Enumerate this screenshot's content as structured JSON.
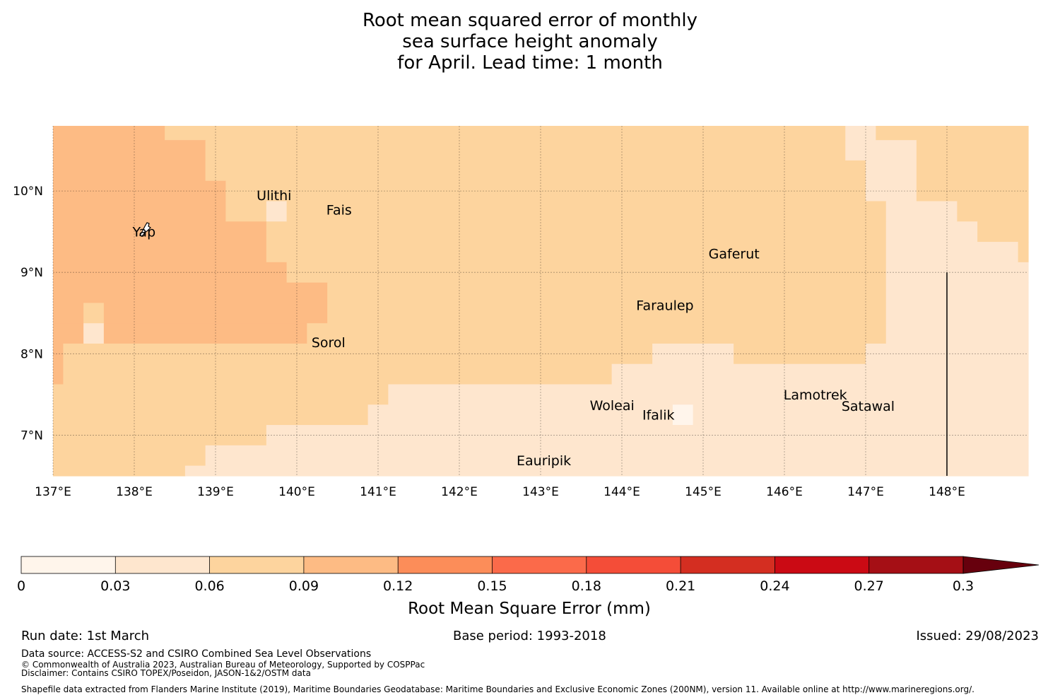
{
  "title": {
    "line1": "Root mean squared error of monthly",
    "line2": "sea surface height anomaly",
    "line3": "for April. Lead time: 1 month"
  },
  "map": {
    "lon_range": [
      137.0,
      149.0
    ],
    "lat_range": [
      6.5,
      10.8
    ],
    "lon_ticks": [
      {
        "value": 137,
        "label": "137°E"
      },
      {
        "value": 138,
        "label": "138°E"
      },
      {
        "value": 139,
        "label": "139°E"
      },
      {
        "value": 140,
        "label": "140°E"
      },
      {
        "value": 141,
        "label": "141°E"
      },
      {
        "value": 142,
        "label": "142°E"
      },
      {
        "value": 143,
        "label": "143°E"
      },
      {
        "value": 144,
        "label": "144°E"
      },
      {
        "value": 145,
        "label": "145°E"
      },
      {
        "value": 146,
        "label": "146°E"
      },
      {
        "value": 147,
        "label": "147°E"
      },
      {
        "value": 148,
        "label": "148°E"
      }
    ],
    "lat_ticks": [
      {
        "value": 10,
        "label": "10°N"
      },
      {
        "value": 9,
        "label": "9°N"
      },
      {
        "value": 8,
        "label": "8°N"
      },
      {
        "value": 7,
        "label": "7°N"
      }
    ],
    "places": [
      {
        "name": "Yap",
        "lon": 138.12,
        "lat": 9.5
      },
      {
        "name": "Ulithi",
        "lon": 139.72,
        "lat": 9.95
      },
      {
        "name": "Fais",
        "lon": 140.52,
        "lat": 9.77
      },
      {
        "name": "Gaferut",
        "lon": 145.38,
        "lat": 9.23
      },
      {
        "name": "Faraulep",
        "lon": 144.53,
        "lat": 8.6
      },
      {
        "name": "Sorol",
        "lon": 140.39,
        "lat": 8.14
      },
      {
        "name": "Woleai",
        "lon": 143.88,
        "lat": 7.37
      },
      {
        "name": "Ifalik",
        "lon": 144.45,
        "lat": 7.25
      },
      {
        "name": "Lamotrek",
        "lon": 146.38,
        "lat": 7.5
      },
      {
        "name": "Satawal",
        "lon": 147.03,
        "lat": 7.36
      },
      {
        "name": "Eauripik",
        "lon": 143.04,
        "lat": 6.69
      }
    ],
    "boundary_line": {
      "lon": 148.0,
      "lat_from": 6.5,
      "lat_to": 9.0
    },
    "field": {
      "cell_size_deg": 0.25,
      "lat_start": 10.75,
      "lon_start": 137.0,
      "note": "rows run north to south starting at lat_start; each row lists [lon_from, lon_to, class] segments; class = colorbar bin index",
      "rows": [
        [
          [
            137.0,
            138.375,
            3
          ],
          [
            138.375,
            141.25,
            2
          ],
          [
            141.25,
            146.75,
            2
          ],
          [
            146.75,
            147.125,
            1
          ],
          [
            147.125,
            147.75,
            2
          ],
          [
            147.75,
            149.0,
            2
          ]
        ],
        [
          [
            137.0,
            138.875,
            3
          ],
          [
            138.875,
            146.75,
            2
          ],
          [
            146.75,
            147.625,
            1
          ],
          [
            147.625,
            149.0,
            2
          ]
        ],
        [
          [
            137.0,
            138.875,
            3
          ],
          [
            138.875,
            147.0,
            2
          ],
          [
            147.0,
            147.625,
            1
          ],
          [
            147.625,
            149.0,
            2
          ]
        ],
        [
          [
            137.0,
            139.125,
            3
          ],
          [
            139.125,
            147.0,
            2
          ],
          [
            147.0,
            147.625,
            1
          ],
          [
            147.625,
            149.0,
            2
          ]
        ],
        [
          [
            137.0,
            139.125,
            3
          ],
          [
            139.125,
            139.625,
            2
          ],
          [
            139.625,
            139.875,
            1
          ],
          [
            139.875,
            147.25,
            2
          ],
          [
            147.25,
            148.125,
            1
          ],
          [
            148.125,
            149.0,
            2
          ]
        ],
        [
          [
            137.0,
            139.625,
            3
          ],
          [
            139.625,
            147.25,
            2
          ],
          [
            147.25,
            148.375,
            1
          ],
          [
            148.375,
            149.0,
            2
          ]
        ],
        [
          [
            137.0,
            139.625,
            3
          ],
          [
            139.625,
            147.25,
            2
          ],
          [
            147.25,
            148.875,
            1
          ],
          [
            148.875,
            149.0,
            2
          ]
        ],
        [
          [
            137.0,
            139.875,
            3
          ],
          [
            139.875,
            147.25,
            2
          ],
          [
            147.25,
            149.0,
            1
          ]
        ],
        [
          [
            137.0,
            140.375,
            3
          ],
          [
            140.375,
            147.25,
            2
          ],
          [
            147.25,
            149.0,
            1
          ]
        ],
        [
          [
            137.0,
            137.375,
            3
          ],
          [
            137.375,
            137.625,
            2
          ],
          [
            137.625,
            140.375,
            3
          ],
          [
            140.375,
            147.25,
            2
          ],
          [
            147.25,
            149.0,
            1
          ]
        ],
        [
          [
            137.0,
            137.375,
            3
          ],
          [
            137.375,
            137.625,
            1
          ],
          [
            137.625,
            140.125,
            3
          ],
          [
            140.125,
            147.25,
            2
          ],
          [
            147.25,
            149.0,
            1
          ]
        ],
        [
          [
            137.0,
            137.125,
            3
          ],
          [
            137.125,
            144.375,
            2
          ],
          [
            144.375,
            145.375,
            1
          ],
          [
            145.375,
            147.0,
            2
          ],
          [
            147.0,
            149.0,
            1
          ]
        ],
        [
          [
            137.0,
            137.125,
            3
          ],
          [
            137.125,
            143.875,
            2
          ],
          [
            143.875,
            149.0,
            1
          ]
        ],
        [
          [
            137.0,
            141.125,
            2
          ],
          [
            141.125,
            149.0,
            1
          ]
        ],
        [
          [
            137.0,
            140.875,
            2
          ],
          [
            140.875,
            144.625,
            1
          ],
          [
            144.625,
            144.875,
            0
          ],
          [
            144.875,
            149.0,
            1
          ]
        ],
        [
          [
            137.0,
            139.625,
            2
          ],
          [
            139.625,
            149.0,
            1
          ]
        ],
        [
          [
            137.0,
            138.875,
            2
          ],
          [
            138.875,
            149.0,
            1
          ]
        ],
        [
          [
            137.0,
            138.625,
            2
          ],
          [
            138.625,
            149.0,
            1
          ]
        ]
      ]
    }
  },
  "colorbar": {
    "label": "Root Mean Square Error (mm)",
    "ticks": [
      "0",
      "0.03",
      "0.06",
      "0.09",
      "0.12",
      "0.15",
      "0.18",
      "0.21",
      "0.24",
      "0.27",
      "0.3"
    ],
    "colors": [
      "#fff5eb",
      "#fee6ce",
      "#fdd49e",
      "#fdbb84",
      "#fc8d59",
      "#fb6a4a",
      "#f44d38",
      "#d42e21",
      "#cb0a14",
      "#a50f15"
    ],
    "extend_color": "#67000d"
  },
  "footer": {
    "run_date": "Run date: 1st March",
    "base_period": "Base period: 1993-2018",
    "issued": "Issued: 29/08/2023",
    "data_source": "Data source: ACCESS-S2 and CSIRO Combined Sea Level Observations",
    "copyright": "© Commonwealth of Australia 2023, Australian Bureau of Meteorology, Supported by COSPPac",
    "disclaimer": "Disclaimer: Contains CSIRO TOPEX/Poseidon, JASON-1&2/OSTM data",
    "shapefile": "Shapefile data extracted from Flanders Marine Institute (2019), Maritime Boundaries Geodatabase: Maritime Boundaries and Exclusive Economic Zones (200NM), version 11. Available online at http://www.marineregions.org/."
  }
}
